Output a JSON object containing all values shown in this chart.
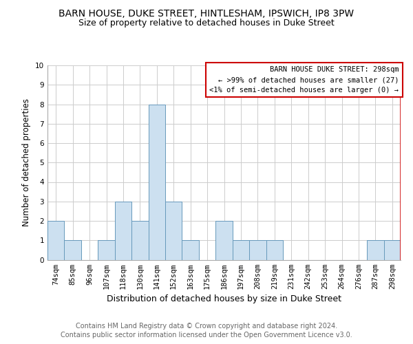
{
  "title": "BARN HOUSE, DUKE STREET, HINTLESHAM, IPSWICH, IP8 3PW",
  "subtitle": "Size of property relative to detached houses in Duke Street",
  "xlabel": "Distribution of detached houses by size in Duke Street",
  "ylabel": "Number of detached properties",
  "categories": [
    "74sqm",
    "85sqm",
    "96sqm",
    "107sqm",
    "118sqm",
    "130sqm",
    "141sqm",
    "152sqm",
    "163sqm",
    "175sqm",
    "186sqm",
    "197sqm",
    "208sqm",
    "219sqm",
    "231sqm",
    "242sqm",
    "253sqm",
    "264sqm",
    "276sqm",
    "287sqm",
    "298sqm"
  ],
  "values": [
    2,
    1,
    0,
    1,
    3,
    2,
    8,
    3,
    1,
    0,
    2,
    1,
    1,
    1,
    0,
    0,
    0,
    0,
    0,
    1,
    1
  ],
  "highlight_index": 20,
  "bar_color": "#cce0f0",
  "bar_edge_color": "#6699bb",
  "highlight_bar_edge_color": "#cc0000",
  "ylim": [
    0,
    10
  ],
  "yticks": [
    0,
    1,
    2,
    3,
    4,
    5,
    6,
    7,
    8,
    9,
    10
  ],
  "annotation_box_text": "BARN HOUSE DUKE STREET: 298sqm\n← >99% of detached houses are smaller (27)\n<1% of semi-detached houses are larger (0) →",
  "annotation_box_edge_color": "#cc0000",
  "footnote": "Contains HM Land Registry data © Crown copyright and database right 2024.\nContains public sector information licensed under the Open Government Licence v3.0.",
  "title_fontsize": 10,
  "subtitle_fontsize": 9,
  "xlabel_fontsize": 9,
  "ylabel_fontsize": 8.5,
  "tick_fontsize": 7.5,
  "annotation_fontsize": 7.5,
  "footnote_fontsize": 7,
  "grid_color": "#cccccc",
  "background_color": "#ffffff"
}
